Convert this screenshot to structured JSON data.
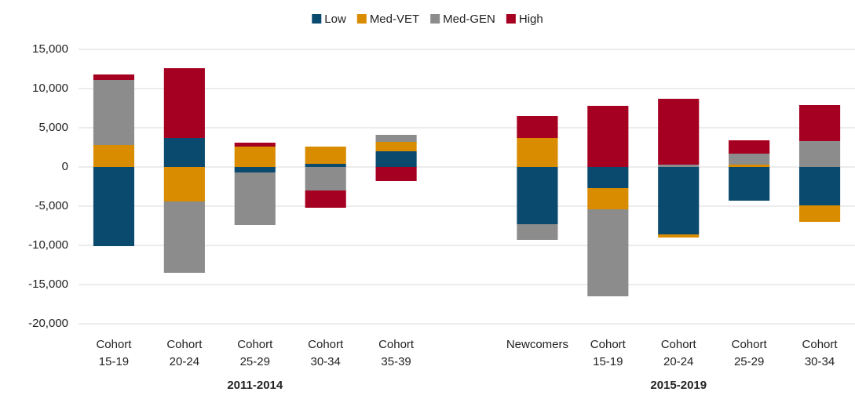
{
  "chart_data": {
    "type": "bar",
    "stacked": true,
    "categories": [
      "Cohort 15-19",
      "Cohort 20-24",
      "Cohort 25-29",
      "Cohort 30-34",
      "Cohort 35-39",
      null,
      "Newcomers",
      "Cohort 15-19",
      "Cohort 20-24",
      "Cohort 25-29",
      "Cohort 30-34"
    ],
    "group_labels": [
      "2011-2014",
      "2015-2019"
    ],
    "series": [
      {
        "name": "Low",
        "color": "#0b4a6f",
        "values": [
          -10100,
          3700,
          -700,
          400,
          2000,
          null,
          -7300,
          -2700,
          -8600,
          -4300,
          -4900
        ]
      },
      {
        "name": "Med-VET",
        "color": "#d98c00",
        "values": [
          2800,
          -4400,
          2600,
          2200,
          1200,
          null,
          3700,
          -2700,
          -400,
          300,
          -2100
        ]
      },
      {
        "name": "Med-GEN",
        "color": "#8c8c8c",
        "values": [
          8300,
          -9100,
          -6700,
          -3000,
          900,
          null,
          -2000,
          -11100,
          300,
          1400,
          3300
        ]
      },
      {
        "name": "High",
        "color": "#a50021",
        "values": [
          700,
          8900,
          500,
          -2200,
          -1800,
          null,
          2800,
          7800,
          8400,
          1700,
          4600
        ]
      }
    ],
    "ylim": [
      -20000,
      15000
    ],
    "yticks": [
      {
        "value": -20000,
        "label": "-20,000"
      },
      {
        "value": -15000,
        "label": "-15,000"
      },
      {
        "value": -10000,
        "label": "-10,000"
      },
      {
        "value": -5000,
        "label": "-5,000"
      },
      0,
      {
        "value": 5000,
        "label": "5,000"
      },
      {
        "value": 10000,
        "label": "10,000"
      },
      {
        "value": 15000,
        "label": "15,000"
      }
    ],
    "grid": true,
    "legend": "top"
  }
}
